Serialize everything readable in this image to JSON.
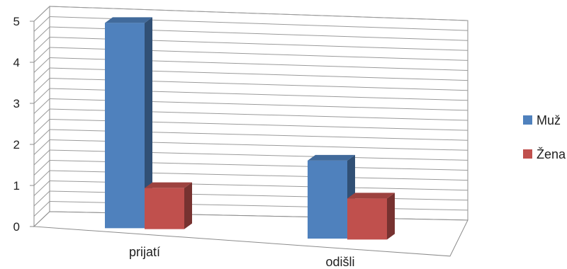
{
  "chart_data": {
    "type": "bar",
    "title": "",
    "xlabel": "",
    "ylabel": "",
    "ylim": [
      0,
      5
    ],
    "yticks": [
      "0",
      "1",
      "2",
      "3",
      "4",
      "5"
    ],
    "categories": [
      "prijatí",
      "odišli"
    ],
    "series": [
      {
        "name": "Muž",
        "values": [
          5,
          1.9
        ],
        "color": "#4f81bd"
      },
      {
        "name": "Žena",
        "values": [
          1,
          1
        ],
        "color": "#c0504d"
      }
    ],
    "grid": true,
    "legend": "right",
    "style": "3d-clustered-column"
  }
}
